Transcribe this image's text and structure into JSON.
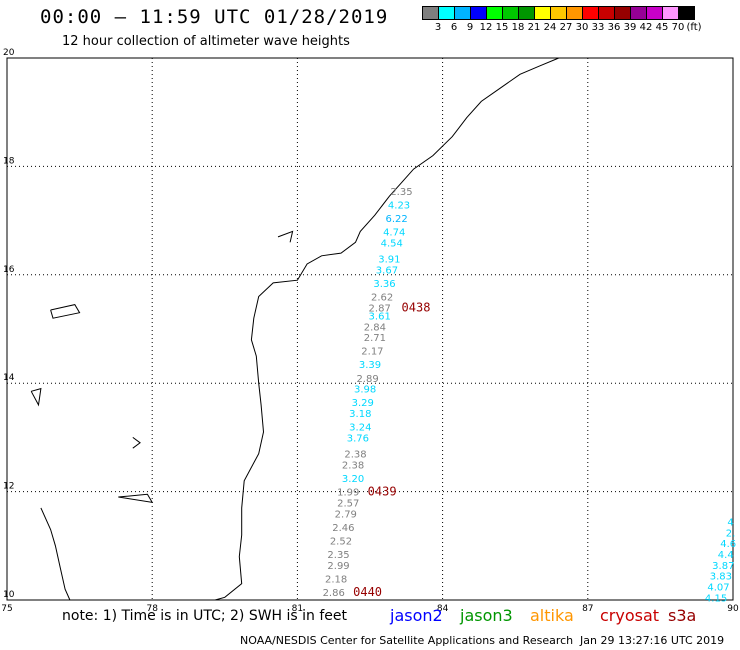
{
  "header": {
    "title": "00:00 – 11:59 UTC 01/28/2019",
    "subtitle": "12 hour collection of altimeter wave heights"
  },
  "colorbar": {
    "colors": [
      "#7f7f7f",
      "#00ffff",
      "#00b4ff",
      "#0000ff",
      "#00ff00",
      "#00c800",
      "#009600",
      "#ffff00",
      "#ffc800",
      "#ff9600",
      "#ff0000",
      "#c80000",
      "#960000",
      "#960096",
      "#c800c8",
      "#ff96ff",
      "#000000"
    ],
    "labels": [
      "3",
      "6",
      "9",
      "12",
      "15",
      "18",
      "21",
      "24",
      "27",
      "30",
      "33",
      "36",
      "39",
      "42",
      "45",
      "70",
      "(ft)"
    ]
  },
  "map": {
    "lon_range": [
      75,
      90
    ],
    "lat_range": [
      10,
      20
    ],
    "lon_ticks": [
      "75",
      "78",
      "81",
      "84",
      "87",
      "90"
    ],
    "lat_ticks": [
      "20",
      "18",
      "16",
      "14",
      "12",
      "10"
    ],
    "grid": "dotted"
  },
  "observations": [
    {
      "lat": 17.55,
      "lon": 83.15,
      "value": "2.35",
      "color": "#808080"
    },
    {
      "lat": 17.3,
      "lon": 83.1,
      "value": "4.23",
      "color": "#00d8ff"
    },
    {
      "lat": 17.05,
      "lon": 83.05,
      "value": "6.22",
      "color": "#00b4ff"
    },
    {
      "lat": 16.8,
      "lon": 83.0,
      "value": "4.74",
      "color": "#00d8ff"
    },
    {
      "lat": 16.6,
      "lon": 82.95,
      "value": "4.54",
      "color": "#00d8ff"
    },
    {
      "lat": 16.3,
      "lon": 82.9,
      "value": "3.91",
      "color": "#00d8ff"
    },
    {
      "lat": 16.1,
      "lon": 82.85,
      "value": "3.67",
      "color": "#00d8ff"
    },
    {
      "lat": 15.85,
      "lon": 82.8,
      "value": "3.36",
      "color": "#00d8ff"
    },
    {
      "lat": 15.6,
      "lon": 82.75,
      "value": "2.62",
      "color": "#808080"
    },
    {
      "lat": 15.4,
      "lon": 82.7,
      "value": "2.87",
      "color": "#808080"
    },
    {
      "lat": 15.25,
      "lon": 82.7,
      "value": "3.61",
      "color": "#00d8ff"
    },
    {
      "lat": 15.05,
      "lon": 82.6,
      "value": "2.84",
      "color": "#808080"
    },
    {
      "lat": 14.85,
      "lon": 82.6,
      "value": "2.71",
      "color": "#808080"
    },
    {
      "lat": 14.6,
      "lon": 82.55,
      "value": "2.17",
      "color": "#808080"
    },
    {
      "lat": 14.35,
      "lon": 82.5,
      "value": "3.39",
      "color": "#00d8ff"
    },
    {
      "lat": 14.1,
      "lon": 82.45,
      "value": "2.89",
      "color": "#808080"
    },
    {
      "lat": 13.9,
      "lon": 82.4,
      "value": "3.98",
      "color": "#00d8ff"
    },
    {
      "lat": 13.65,
      "lon": 82.35,
      "value": "3.29",
      "color": "#00d8ff"
    },
    {
      "lat": 13.45,
      "lon": 82.3,
      "value": "3.18",
      "color": "#00d8ff"
    },
    {
      "lat": 13.2,
      "lon": 82.3,
      "value": "3.24",
      "color": "#00d8ff"
    },
    {
      "lat": 13.0,
      "lon": 82.25,
      "value": "3.76",
      "color": "#00d8ff"
    },
    {
      "lat": 12.7,
      "lon": 82.2,
      "value": "2.38",
      "color": "#808080"
    },
    {
      "lat": 12.5,
      "lon": 82.15,
      "value": "2.38",
      "color": "#808080"
    },
    {
      "lat": 12.25,
      "lon": 82.15,
      "value": "3.20",
      "color": "#00d8ff"
    },
    {
      "lat": 12.0,
      "lon": 82.05,
      "value": "1.99",
      "color": "#808080"
    },
    {
      "lat": 11.8,
      "lon": 82.05,
      "value": "2.57",
      "color": "#808080"
    },
    {
      "lat": 11.6,
      "lon": 82.0,
      "value": "2.79",
      "color": "#808080"
    },
    {
      "lat": 11.35,
      "lon": 81.95,
      "value": "2.46",
      "color": "#808080"
    },
    {
      "lat": 11.1,
      "lon": 81.9,
      "value": "2.52",
      "color": "#808080"
    },
    {
      "lat": 10.85,
      "lon": 81.85,
      "value": "2.35",
      "color": "#808080"
    },
    {
      "lat": 10.65,
      "lon": 81.85,
      "value": "2.99",
      "color": "#808080"
    },
    {
      "lat": 10.4,
      "lon": 81.8,
      "value": "2.18",
      "color": "#808080"
    },
    {
      "lat": 10.15,
      "lon": 81.75,
      "value": "2.86",
      "color": "#808080"
    },
    {
      "lat": 11.45,
      "lon": 89.95,
      "value": "4",
      "color": "#00d8ff"
    },
    {
      "lat": 11.25,
      "lon": 89.95,
      "value": "2.",
      "color": "#00d8ff"
    },
    {
      "lat": 11.05,
      "lon": 89.9,
      "value": "4.6",
      "color": "#00d8ff"
    },
    {
      "lat": 10.85,
      "lon": 89.85,
      "value": "4.4",
      "color": "#00d8ff"
    },
    {
      "lat": 10.65,
      "lon": 89.8,
      "value": "3.87",
      "color": "#00d8ff"
    },
    {
      "lat": 10.45,
      "lon": 89.75,
      "value": "3.83",
      "color": "#00d8ff"
    },
    {
      "lat": 10.25,
      "lon": 89.7,
      "value": "4.07",
      "color": "#00d8ff"
    },
    {
      "lat": 10.05,
      "lon": 89.65,
      "value": "4.15",
      "color": "#00d8ff"
    }
  ],
  "time_stamps": [
    {
      "lat": 15.4,
      "lon": 83.45,
      "text": "0438"
    },
    {
      "lat": 12.0,
      "lon": 82.75,
      "text": "0439"
    },
    {
      "lat": 10.15,
      "lon": 82.45,
      "text": "0440"
    }
  ],
  "legend": {
    "note": "note: 1) Time is in UTC; 2) SWH is in feet",
    "satellites": [
      {
        "name": "jason2",
        "color": "#0000ff"
      },
      {
        "name": "jason3",
        "color": "#009600"
      },
      {
        "name": "altika",
        "color": "#ff9600"
      },
      {
        "name": "cryosat",
        "color": "#c80000"
      },
      {
        "name": "s3a",
        "color": "#960000"
      }
    ]
  },
  "footer": {
    "credit": "NOAA/NESDIS Center for Satellite Applications and Research",
    "timestamp": "Jan 29 13:27:16 UTC 2019"
  }
}
